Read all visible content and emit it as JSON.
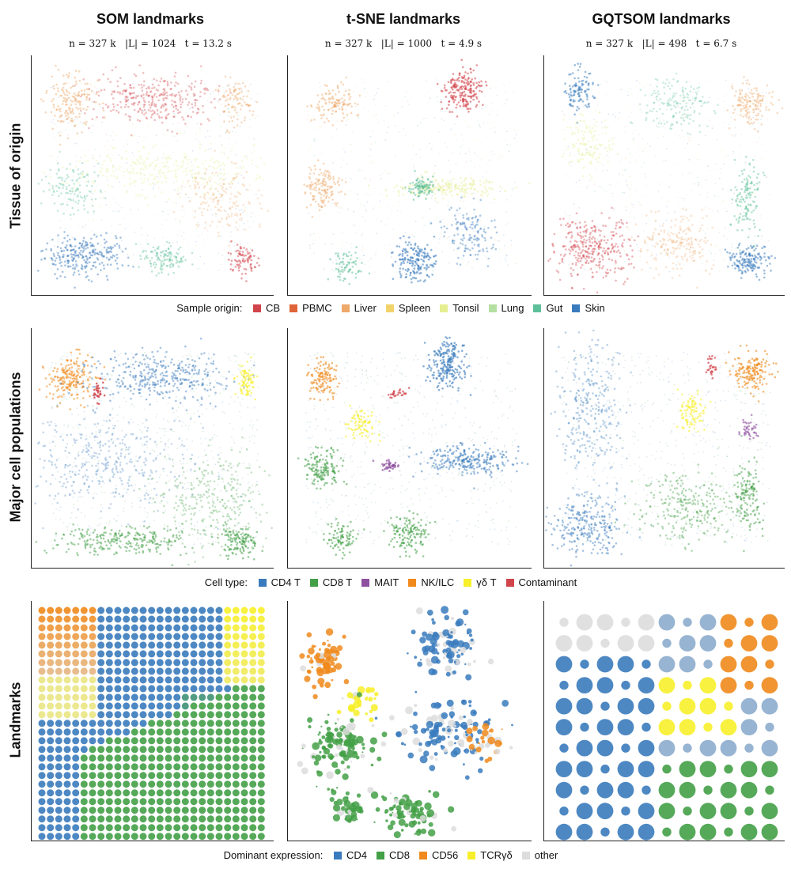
{
  "columns": [
    {
      "title": "SOM landmarks",
      "stats": "n = 327 k   |L| = 1024   t = 13.2 s"
    },
    {
      "title": "t-SNE landmarks",
      "stats": "n = 327 k   |L| = 1000   t = 4.9 s"
    },
    {
      "title": "GQTSOM landmarks",
      "stats": "n = 327 k   |L| = 498   t = 6.7 s"
    }
  ],
  "rows": [
    {
      "title": "Tissue of origin"
    },
    {
      "title": "Major cell populations"
    },
    {
      "title": "Landmarks"
    }
  ],
  "legends": {
    "origin": {
      "title": "Sample origin:",
      "items": [
        {
          "label": "CB",
          "color": "#d1444b"
        },
        {
          "label": "PBMC",
          "color": "#e0643a"
        },
        {
          "label": "Liver",
          "color": "#eea86a"
        },
        {
          "label": "Spleen",
          "color": "#f2d36a"
        },
        {
          "label": "Tonsil",
          "color": "#e6ee92"
        },
        {
          "label": "Lung",
          "color": "#b4e0a2"
        },
        {
          "label": "Gut",
          "color": "#5ec09a"
        },
        {
          "label": "Skin",
          "color": "#3a7bbd"
        }
      ]
    },
    "celltype": {
      "title": "Cell type:",
      "items": [
        {
          "label": "CD4 T",
          "color": "#3a7bbd"
        },
        {
          "label": "CD8 T",
          "color": "#43a047"
        },
        {
          "label": "MAIT",
          "color": "#8e4fa0"
        },
        {
          "label": "NK/ILC",
          "color": "#f08a1c"
        },
        {
          "label": "γδ T",
          "color": "#f7ef2a"
        },
        {
          "label": "Contaminant",
          "color": "#d1444b"
        }
      ]
    },
    "expression": {
      "title": "Dominant expression:",
      "items": [
        {
          "label": "CD4",
          "color": "#3a7bbd"
        },
        {
          "label": "CD8",
          "color": "#43a047"
        },
        {
          "label": "CD56",
          "color": "#f08a1c"
        },
        {
          "label": "TCRγδ",
          "color": "#f7ef2a"
        },
        {
          "label": "other",
          "color": "#dddddd"
        }
      ]
    }
  }
}
